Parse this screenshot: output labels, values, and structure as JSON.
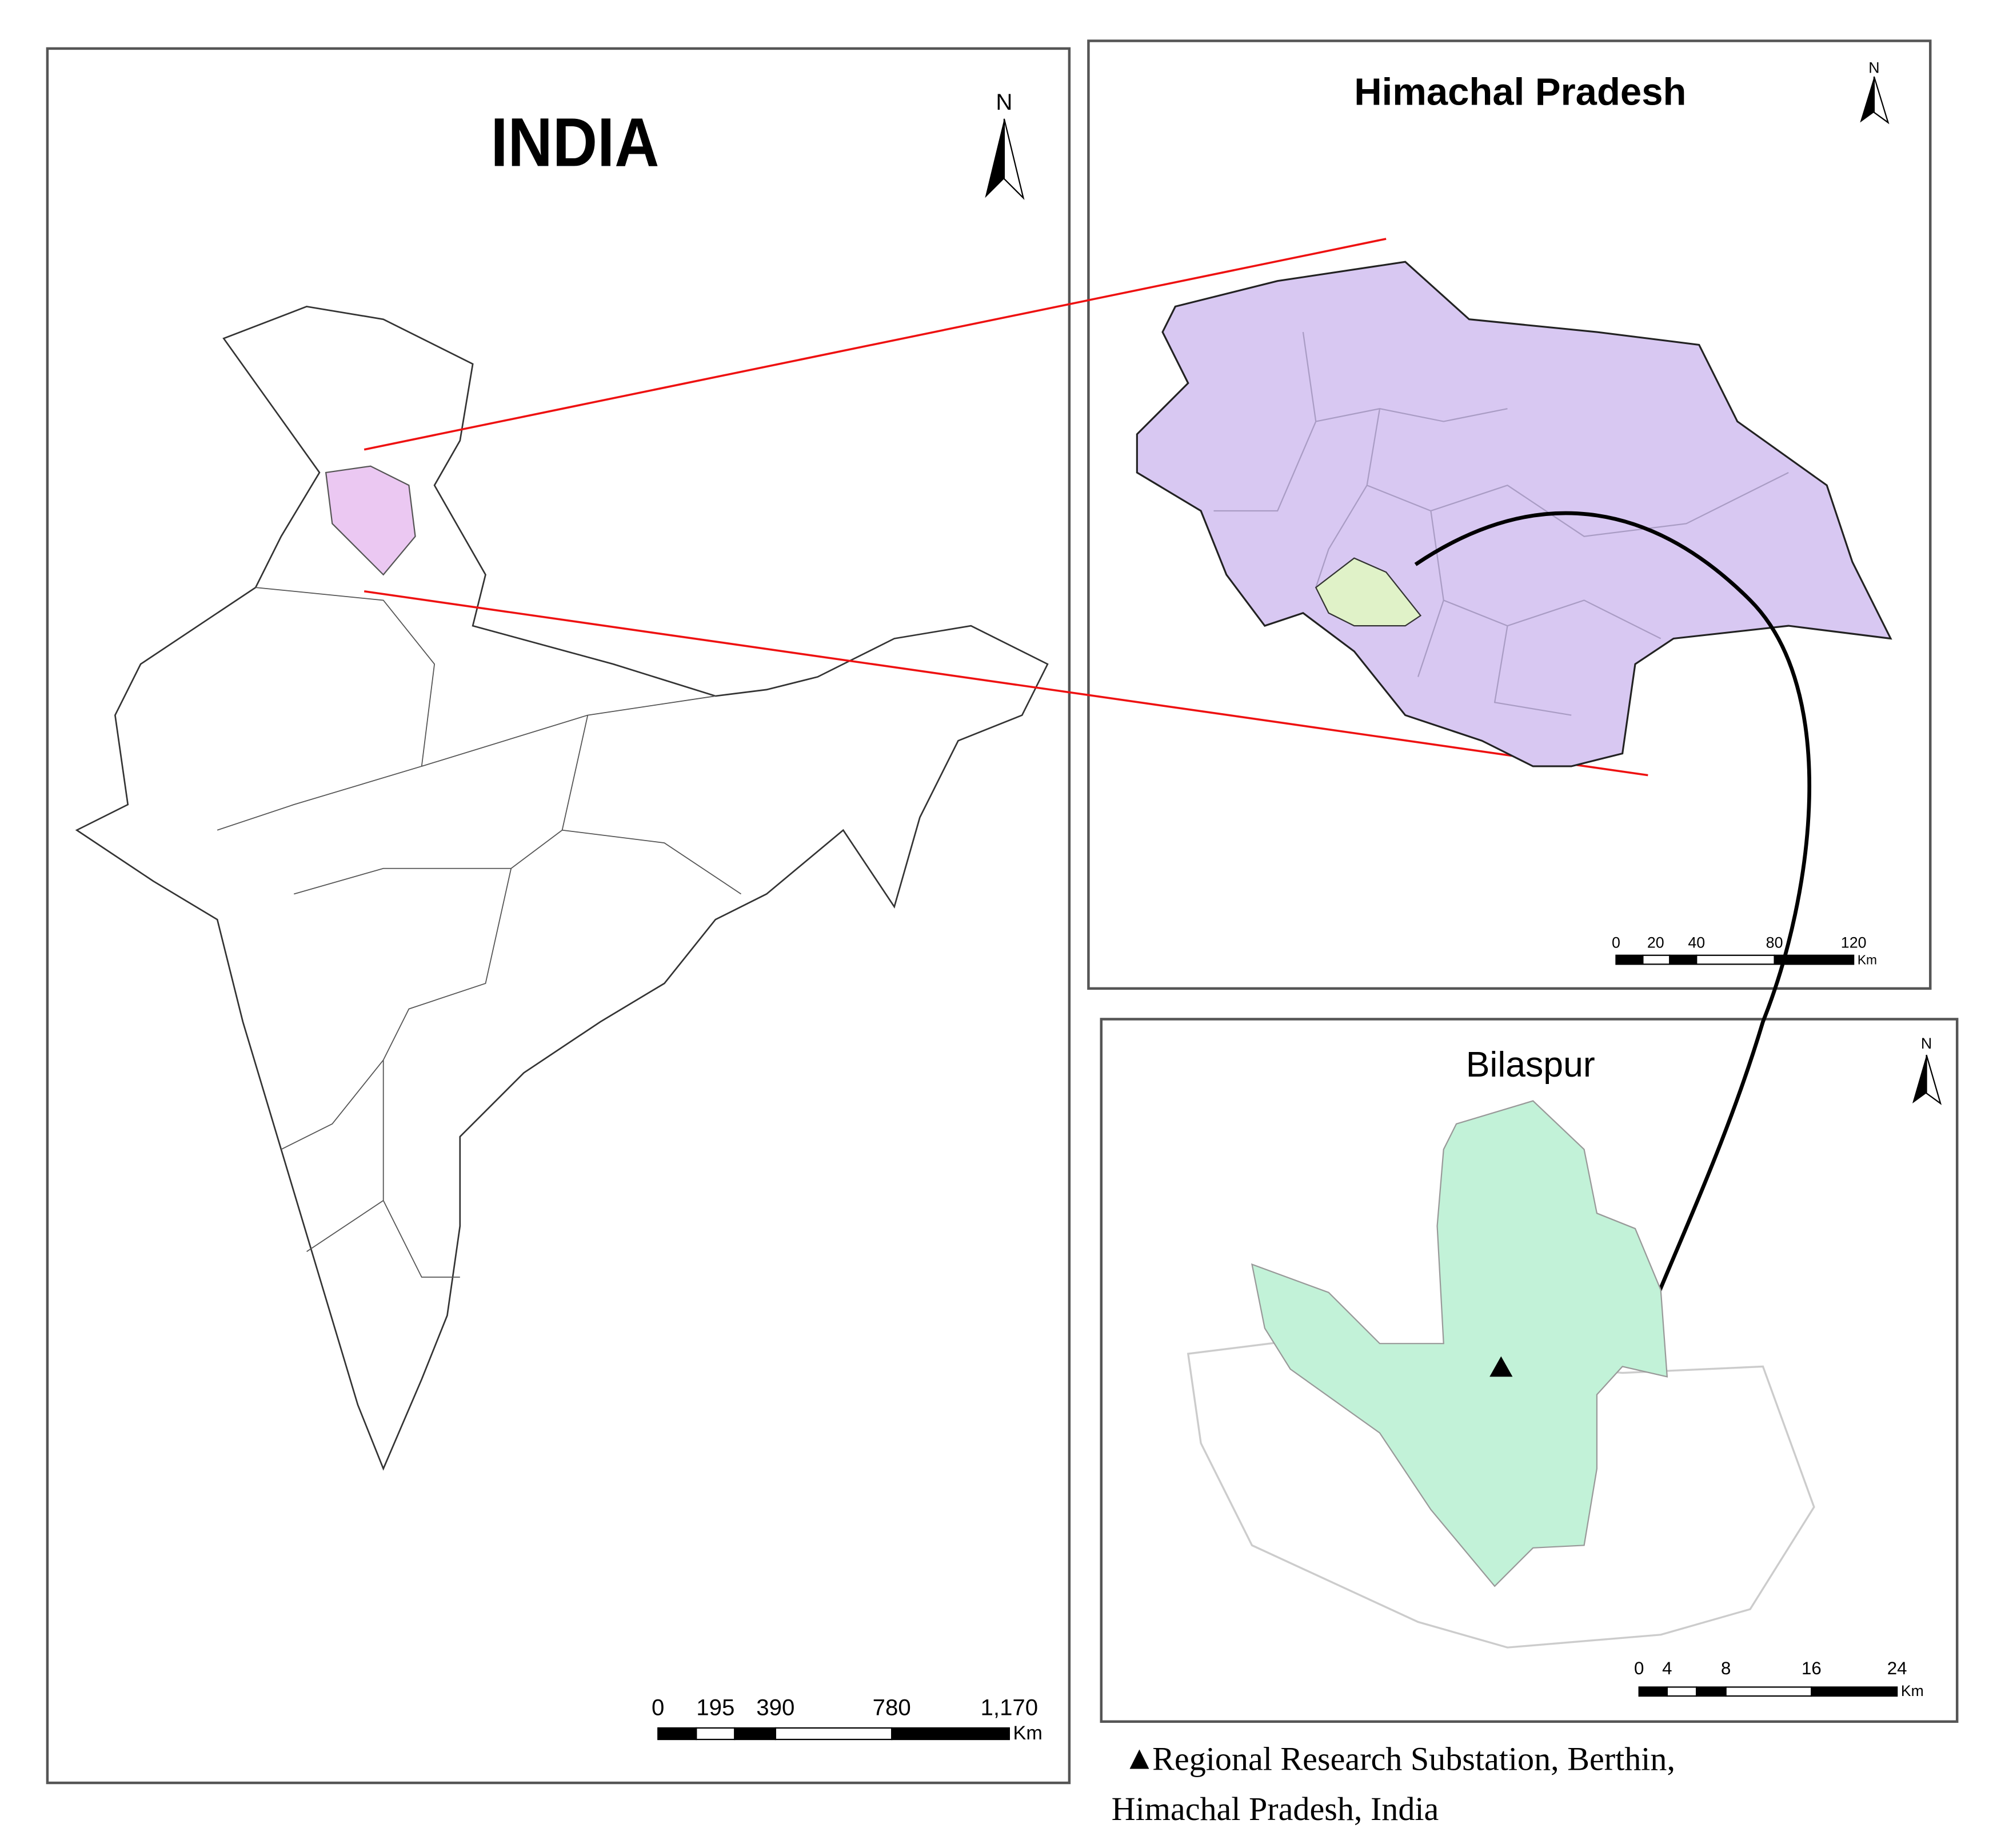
{
  "india": {
    "title": "INDIA",
    "north": "N",
    "scale": {
      "labels": [
        "0",
        "195",
        "390",
        "780",
        "1,170"
      ],
      "unit": "Km"
    }
  },
  "himachal": {
    "title": "Himachal Pradesh",
    "north": "N",
    "scale": {
      "labels": [
        "0",
        "20",
        "40",
        "80",
        "120"
      ],
      "unit": "Km"
    }
  },
  "bilaspur": {
    "title": "Bilaspur",
    "north": "N",
    "scale": {
      "labels": [
        "0",
        "4",
        "8",
        "16",
        "24"
      ],
      "unit": "Km"
    }
  },
  "legend": {
    "symbol": "▲",
    "lines": [
      "Regional Research Substation, Berthin,",
      "Himachal Pradesh, India"
    ]
  }
}
